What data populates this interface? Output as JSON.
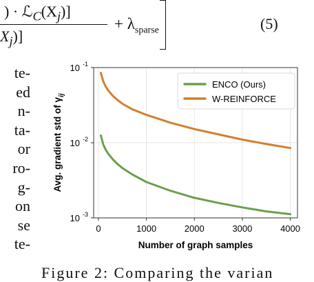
{
  "equation": {
    "numerator_tail": ") · ℒ",
    "numerator_sub": "C",
    "numerator_arg": "(X",
    "numerator_arg_sub": "j",
    "numerator_end": ")]",
    "denominator_tail": "X",
    "denominator_sub": "j",
    "denominator_end": ")]",
    "plus_lambda": "+ λ",
    "lambda_sub": "sparse",
    "number": "(5)"
  },
  "body_text": [
    "te-",
    "ed",
    "n-",
    "ta-",
    "or",
    "ro-",
    "g-",
    "on",
    "se",
    "te-"
  ],
  "caption_fragment": "Figure 2:  Comparing the varian",
  "chart_data": {
    "type": "line",
    "title": "",
    "xlabel": "Number of graph samples",
    "ylabel": "Avg. gradient std of γ",
    "ylabel_sub": "ij",
    "xlim": [
      -100,
      4150
    ],
    "ylim_log10": [
      -3,
      -1
    ],
    "yscale": "log",
    "grid": true,
    "legend": "top-right",
    "xticks": [
      0,
      1000,
      2000,
      3000,
      4000
    ],
    "xtick_labels": [
      "0",
      "1000",
      "2000",
      "3000",
      "4000"
    ],
    "yticks": [
      0.001,
      0.01,
      0.1
    ],
    "ytick_labels": [
      [
        "10",
        "-3"
      ],
      [
        "10",
        "-2"
      ],
      [
        "10",
        "-1"
      ]
    ],
    "series": [
      {
        "name": "ENCO (Ours)",
        "color": "#6a9f4b",
        "x": [
          50,
          100,
          150,
          200,
          300,
          400,
          500,
          700,
          1000,
          1500,
          2000,
          2500,
          3000,
          3500,
          4000
        ],
        "y": [
          0.0125,
          0.0095,
          0.0081,
          0.0072,
          0.006,
          0.0052,
          0.0046,
          0.0038,
          0.003,
          0.0023,
          0.00185,
          0.00158,
          0.00138,
          0.00122,
          0.00112
        ]
      },
      {
        "name": "W-REINFORCE",
        "color": "#d27f2d",
        "x": [
          50,
          100,
          150,
          200,
          300,
          400,
          500,
          700,
          1000,
          1500,
          2000,
          2500,
          3000,
          3500,
          4000
        ],
        "y": [
          0.085,
          0.066,
          0.056,
          0.05,
          0.042,
          0.037,
          0.033,
          0.028,
          0.0235,
          0.0185,
          0.0152,
          0.0129,
          0.011,
          0.0096,
          0.0085
        ]
      }
    ]
  }
}
